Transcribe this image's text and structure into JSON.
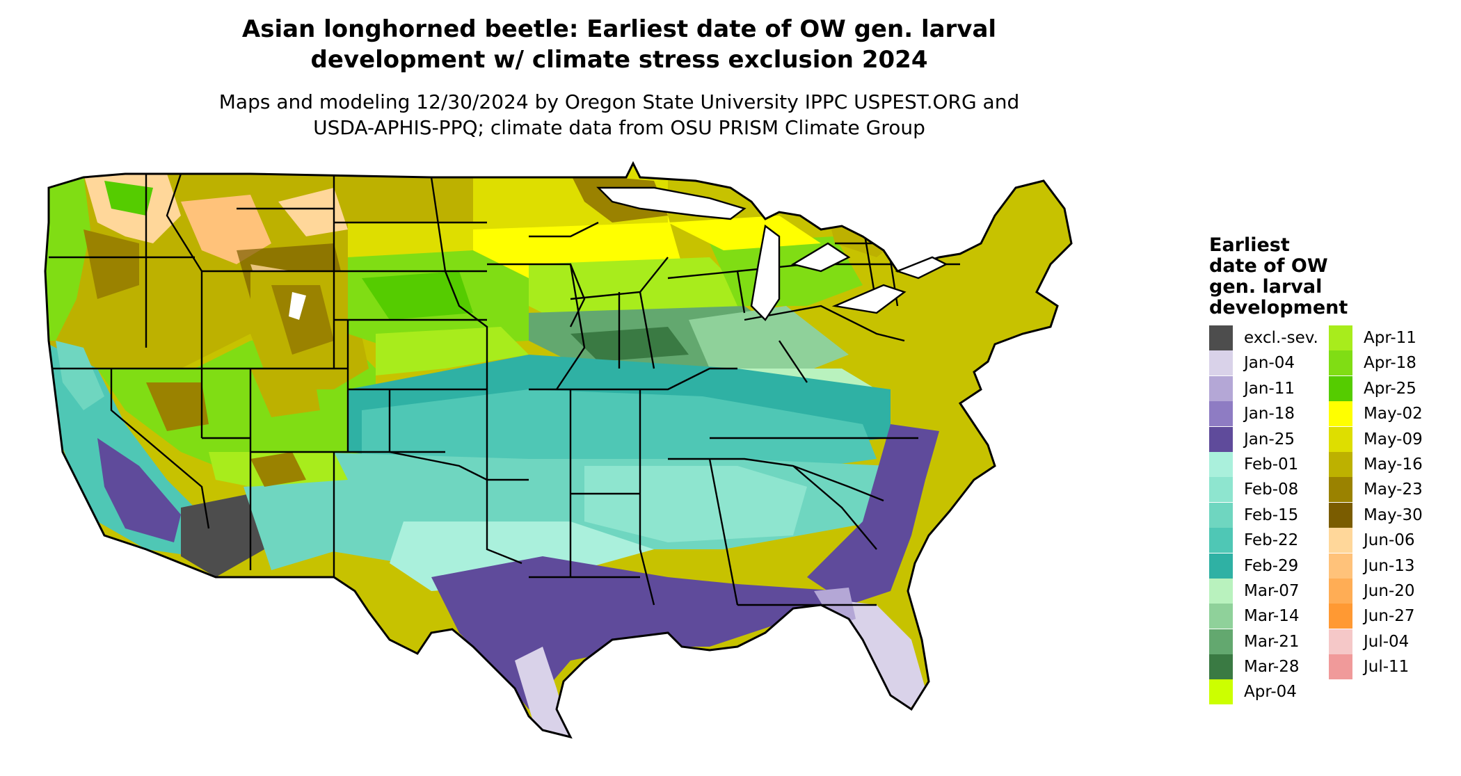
{
  "title": {
    "line1": "Asian longhorned beetle: Earliest date of OW gen. larval",
    "line2": "development w/ climate stress exclusion 2024"
  },
  "subtitle": {
    "line1": "Maps and modeling 12/30/2024 by Oregon State University IPPC USPEST.ORG and",
    "line2": "USDA-APHIS-PPQ; climate data from OSU PRISM Climate Group"
  },
  "legend": {
    "title_lines": [
      "Earliest",
      "date of OW",
      "gen. larval",
      "development"
    ],
    "items": [
      {
        "label": "excl.-sev.",
        "color": "#4d4d4d"
      },
      {
        "label": "Jan-04",
        "color": "#d9d2e9"
      },
      {
        "label": "Jan-11",
        "color": "#b4a7d6"
      },
      {
        "label": "Jan-18",
        "color": "#8e7cc3"
      },
      {
        "label": "Jan-25",
        "color": "#5f4b9b"
      },
      {
        "label": "Feb-01",
        "color": "#aaf0dc"
      },
      {
        "label": "Feb-08",
        "color": "#8ee5cf"
      },
      {
        "label": "Feb-15",
        "color": "#6fd6c0"
      },
      {
        "label": "Feb-22",
        "color": "#4fc7b5"
      },
      {
        "label": "Feb-29",
        "color": "#2fb1a4"
      },
      {
        "label": "Mar-07",
        "color": "#b9f2be"
      },
      {
        "label": "Mar-14",
        "color": "#8fd19a"
      },
      {
        "label": "Mar-21",
        "color": "#63a86f"
      },
      {
        "label": "Mar-28",
        "color": "#3a7a43"
      },
      {
        "label": "Apr-04",
        "color": "#ccff00"
      },
      {
        "label": "Apr-11",
        "color": "#a8ec1c"
      },
      {
        "label": "Apr-18",
        "color": "#80dd14"
      },
      {
        "label": "Apr-25",
        "color": "#55cc00"
      },
      {
        "label": "May-02",
        "color": "#ffff00"
      },
      {
        "label": "May-09",
        "color": "#dede00"
      },
      {
        "label": "May-16",
        "color": "#bdb100"
      },
      {
        "label": "May-23",
        "color": "#9a8200"
      },
      {
        "label": "May-30",
        "color": "#7a5c00"
      },
      {
        "label": "Jun-06",
        "color": "#ffd79a"
      },
      {
        "label": "Jun-13",
        "color": "#ffc27a"
      },
      {
        "label": "Jun-20",
        "color": "#ffad55"
      },
      {
        "label": "Jun-27",
        "color": "#ff9933"
      },
      {
        "label": "Jul-04",
        "color": "#f5c8c8"
      },
      {
        "label": "Jul-11",
        "color": "#f09a9a"
      }
    ]
  }
}
